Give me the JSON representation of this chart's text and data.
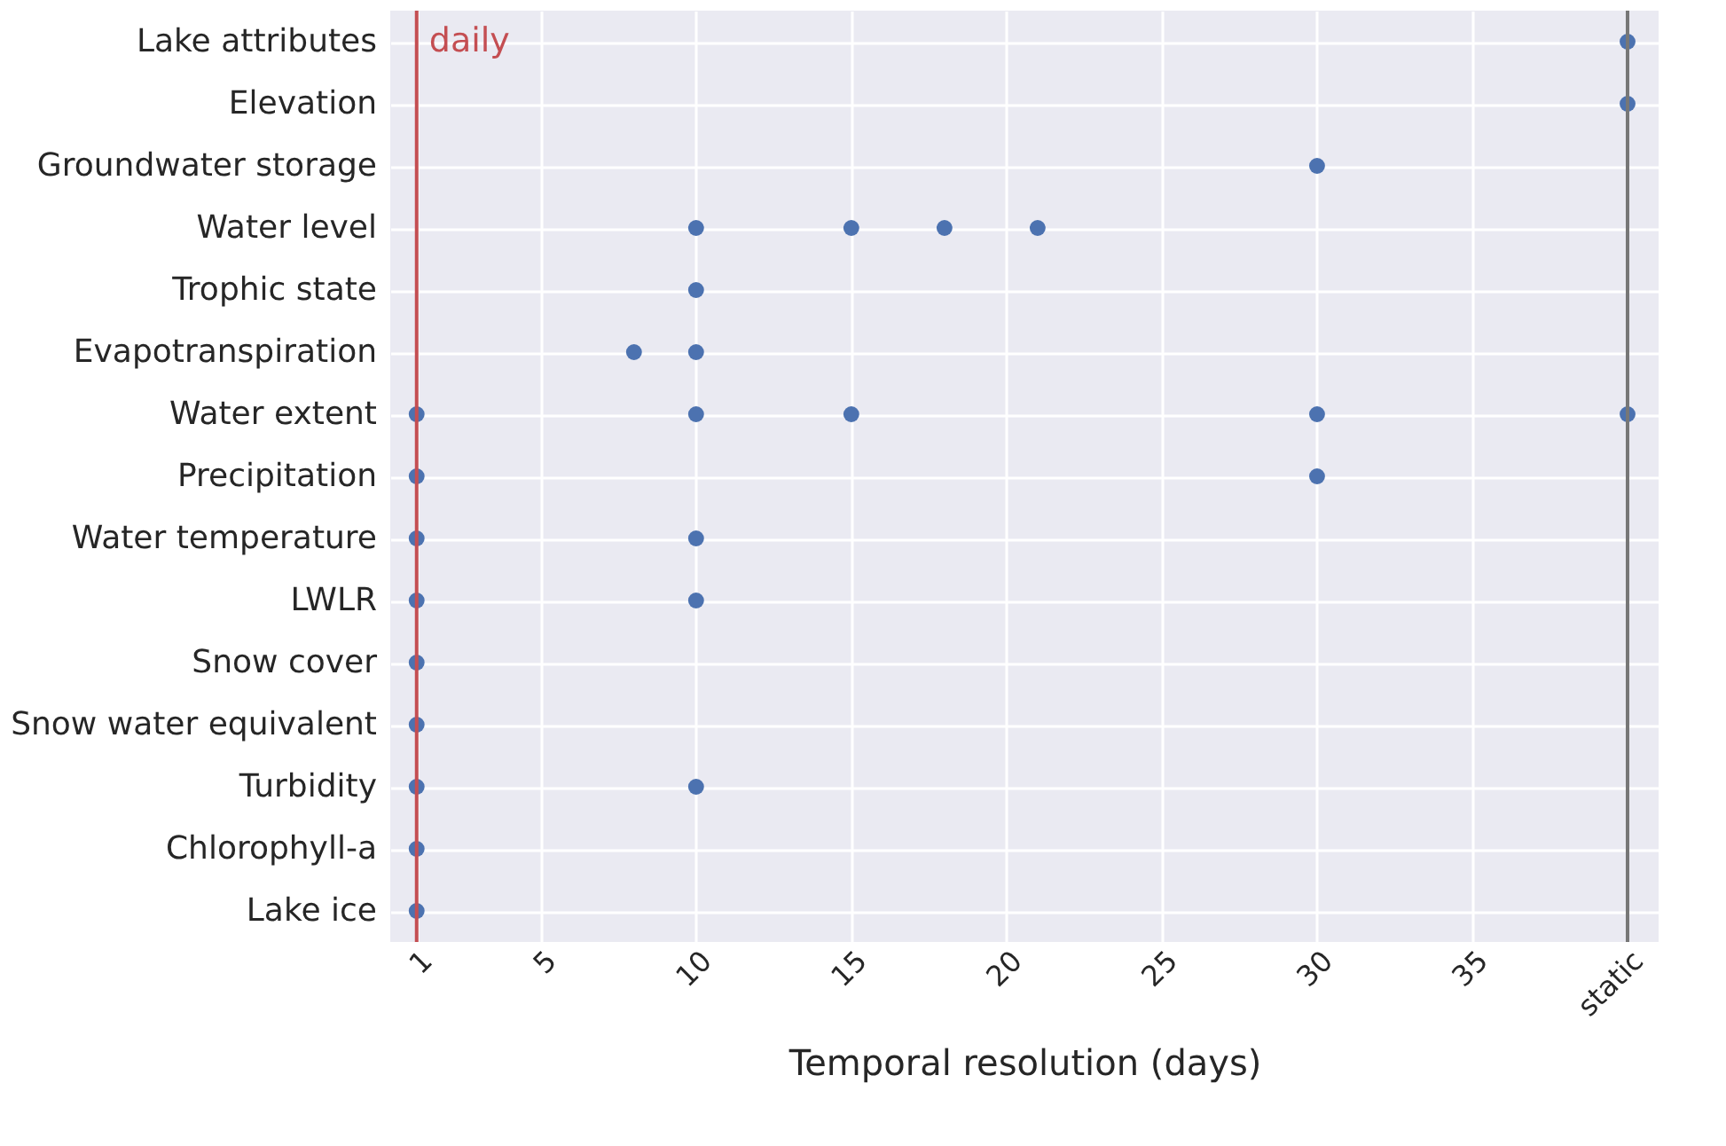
{
  "chart_data": {
    "type": "scatter",
    "orientation": "horizontal",
    "xlabel": "Temporal resolution (days)",
    "categories": [
      "Lake attributes",
      "Elevation",
      "Groundwater storage",
      "Water level",
      "Trophic state",
      "Evapotranspiration",
      "Water extent",
      "Precipitation",
      "Water temperature",
      "LWLR",
      "Snow cover",
      "Snow water equivalent",
      "Turbidity",
      "Chlorophyll-a",
      "Lake ice"
    ],
    "series": [
      {
        "color": "#4c72b0",
        "values": [
          40,
          40,
          30,
          10,
          10,
          8,
          1,
          1,
          1,
          1,
          1,
          1,
          1,
          1,
          1
        ]
      },
      {
        "color": "#4c72b0",
        "values": [
          null,
          null,
          null,
          15,
          null,
          10,
          10,
          30,
          10,
          10,
          null,
          null,
          10,
          null,
          null
        ]
      },
      {
        "color": "#4c72b0",
        "values": [
          null,
          null,
          null,
          18,
          null,
          null,
          15,
          null,
          null,
          null,
          null,
          null,
          null,
          null,
          null
        ]
      },
      {
        "color": "#4c72b0",
        "values": [
          null,
          null,
          null,
          21,
          null,
          null,
          30,
          null,
          null,
          null,
          null,
          null,
          null,
          null,
          null
        ]
      },
      {
        "color": "#4c72b0",
        "values": [
          null,
          null,
          null,
          null,
          null,
          null,
          40,
          null,
          null,
          null,
          null,
          null,
          null,
          null,
          null
        ]
      }
    ],
    "xlim": [
      0.15,
      41
    ],
    "xticks": [
      1,
      5,
      10,
      15,
      20,
      25,
      30,
      35,
      {
        "value": 40,
        "label": "static"
      }
    ],
    "ref_lines": [
      {
        "axis": "x",
        "value": 1,
        "label": "daily",
        "color": "#c44e52"
      },
      {
        "axis": "x",
        "value": 40,
        "color": "#777777"
      }
    ],
    "grid": true,
    "marker": "circle"
  }
}
